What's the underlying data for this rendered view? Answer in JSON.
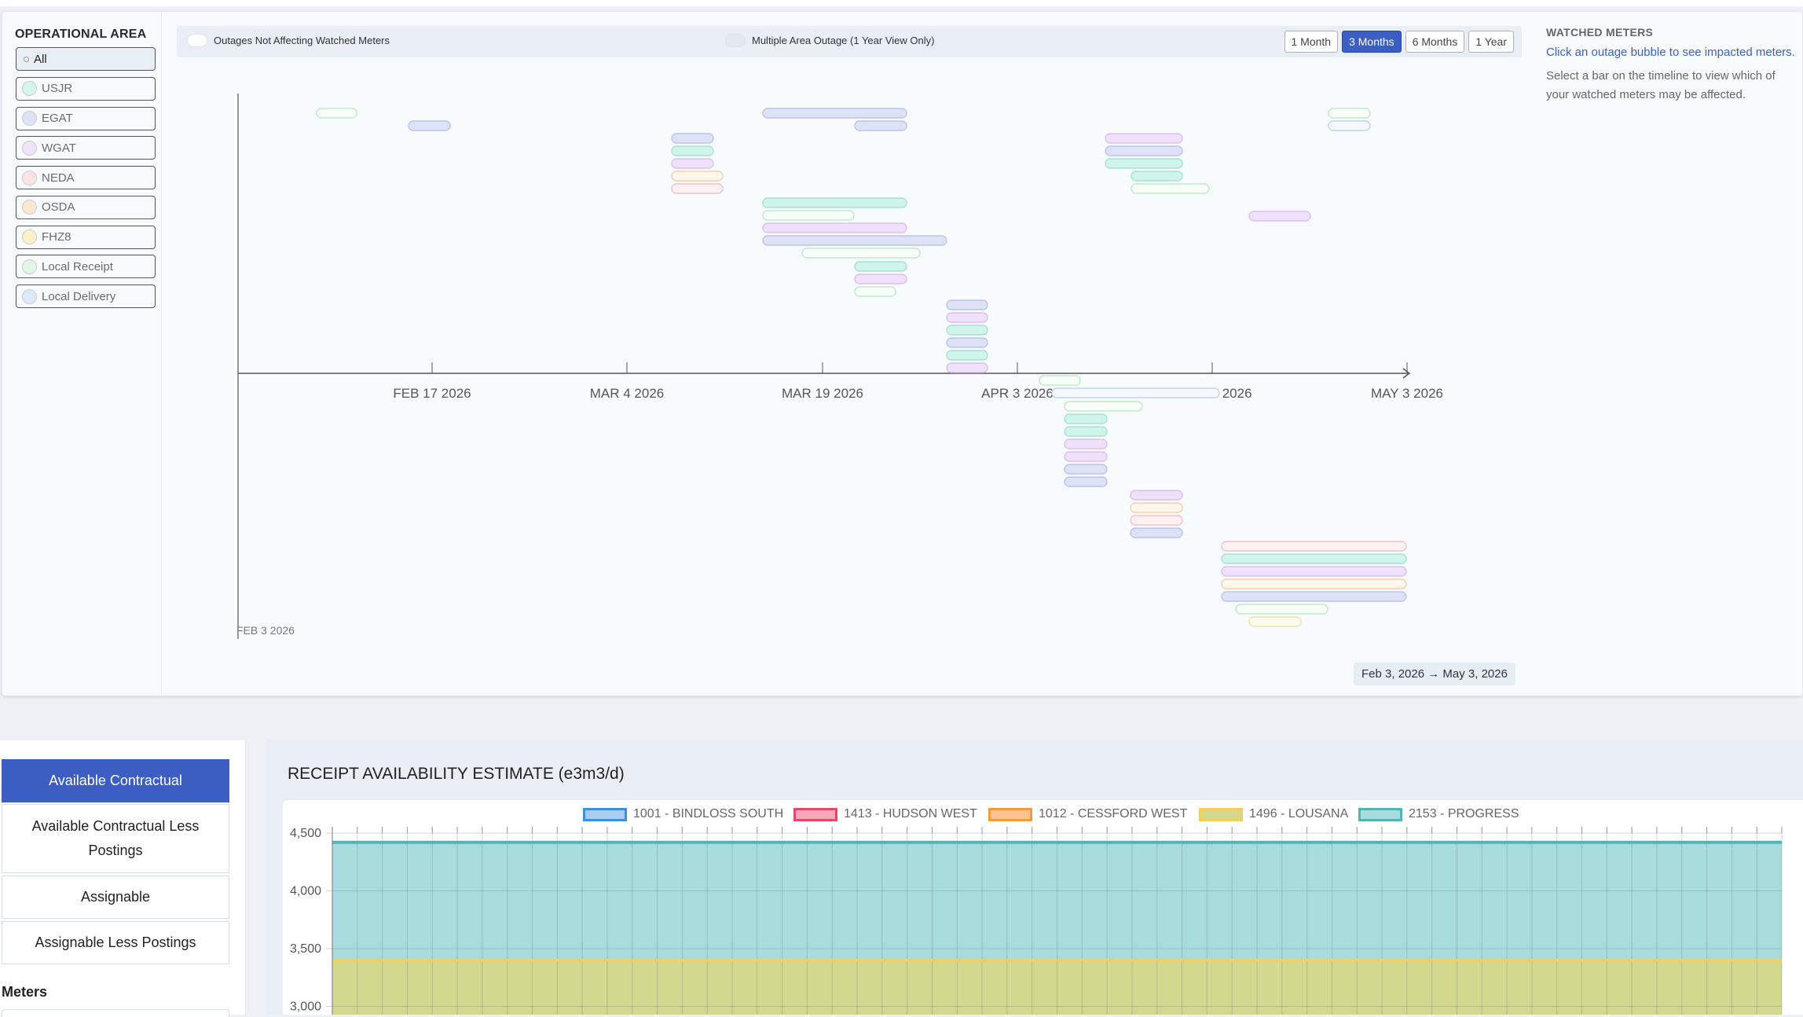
{
  "operational_area": {
    "title": "OPERATIONAL AREA",
    "items": [
      {
        "label": "All",
        "color": "#ffffff",
        "active": true
      },
      {
        "label": "USJR",
        "color": "#d3f5ea"
      },
      {
        "label": "EGAT",
        "color": "#dde2f7"
      },
      {
        "label": "WGAT",
        "color": "#efe3fa"
      },
      {
        "label": "NEDA",
        "color": "#fde2e4"
      },
      {
        "label": "OSDA",
        "color": "#fde7d3"
      },
      {
        "label": "FHZ8",
        "color": "#fdf0c7"
      },
      {
        "label": "Local Receipt",
        "color": "#dff7e4"
      },
      {
        "label": "Local Delivery",
        "color": "#dbe9fb"
      }
    ]
  },
  "timeline": {
    "toggle_1": "Outages Not Affecting Watched Meters",
    "toggle_2": "Multiple Area Outage (1 Year View Only)",
    "range_buttons": [
      {
        "label": "1 Month",
        "active": false
      },
      {
        "label": "3 Months",
        "active": true
      },
      {
        "label": "6 Months",
        "active": false
      },
      {
        "label": "1 Year",
        "active": false
      }
    ],
    "axis_labels": [
      "FEB 17 2026",
      "MAR 4 2026",
      "MAR 19 2026",
      "APR 3 2026",
      "APR 18 2026",
      "MAY 3 2026"
    ],
    "origin_label": "FEB 3 2026",
    "date_range": "Feb 3, 2026 → May 3, 2026",
    "palette": {
      "usjr": {
        "fill": "#cff5ea",
        "stroke": "#9ddcc9"
      },
      "egat": {
        "fill": "#dde2f7",
        "stroke": "#b3bce6"
      },
      "wgat": {
        "fill": "#f0e1fa",
        "stroke": "#d6b7ee"
      },
      "neda": {
        "fill": "#fff1f2",
        "stroke": "#f3b5bb"
      },
      "osda": {
        "fill": "#fff6ec",
        "stroke": "#f3c79c"
      },
      "fhz8": {
        "fill": "#fffbee",
        "stroke": "#f0dc96"
      },
      "lr": {
        "fill": "#f7fff8",
        "stroke": "#b5e6bf"
      },
      "ld": {
        "fill": "#f5f9ff",
        "stroke": "#b8cde9"
      }
    }
  },
  "watched_meters": {
    "title": "WATCHED METERS",
    "link": "Click an outage bubble to see impacted meters.",
    "desc": "Select a bar on the timeline to view which of your watched meters may be affected."
  },
  "tabs": [
    {
      "label": "Available Contractual",
      "active": true
    },
    {
      "label": "Available Contractual Less Postings",
      "active": false
    },
    {
      "label": "Assignable",
      "active": false
    },
    {
      "label": "Assignable Less Postings",
      "active": false
    }
  ],
  "meters_label": "Meters",
  "chart_data": {
    "type": "area",
    "title": "RECEIPT AVAILABILITY ESTIMATE (e3m3/d)",
    "legend_position": "top",
    "series": [
      {
        "name": "1001 - BINDLOSS SOUTH",
        "fill": "#a9cdf2",
        "stroke": "#3d8fe0"
      },
      {
        "name": "1413 - HUDSON WEST",
        "fill": "#f7a8ba",
        "stroke": "#e8476b"
      },
      {
        "name": "1012 - CESSFORD WEST",
        "fill": "#fbc391",
        "stroke": "#f39a3c"
      },
      {
        "name": "1496 - LOUSANA",
        "fill": "#d3d88f",
        "stroke": "#f5cf5e",
        "top_value": 3400
      },
      {
        "name": "2153 - PROGRESS",
        "fill": "#a8dcdc",
        "stroke": "#54b4b4",
        "top_value": 4420
      }
    ],
    "y_ticks": [
      "4,500",
      "4,000",
      "3,500",
      "3,000"
    ],
    "ylim_visible": [
      2980,
      4520
    ],
    "grid": true,
    "x_points": 59
  }
}
